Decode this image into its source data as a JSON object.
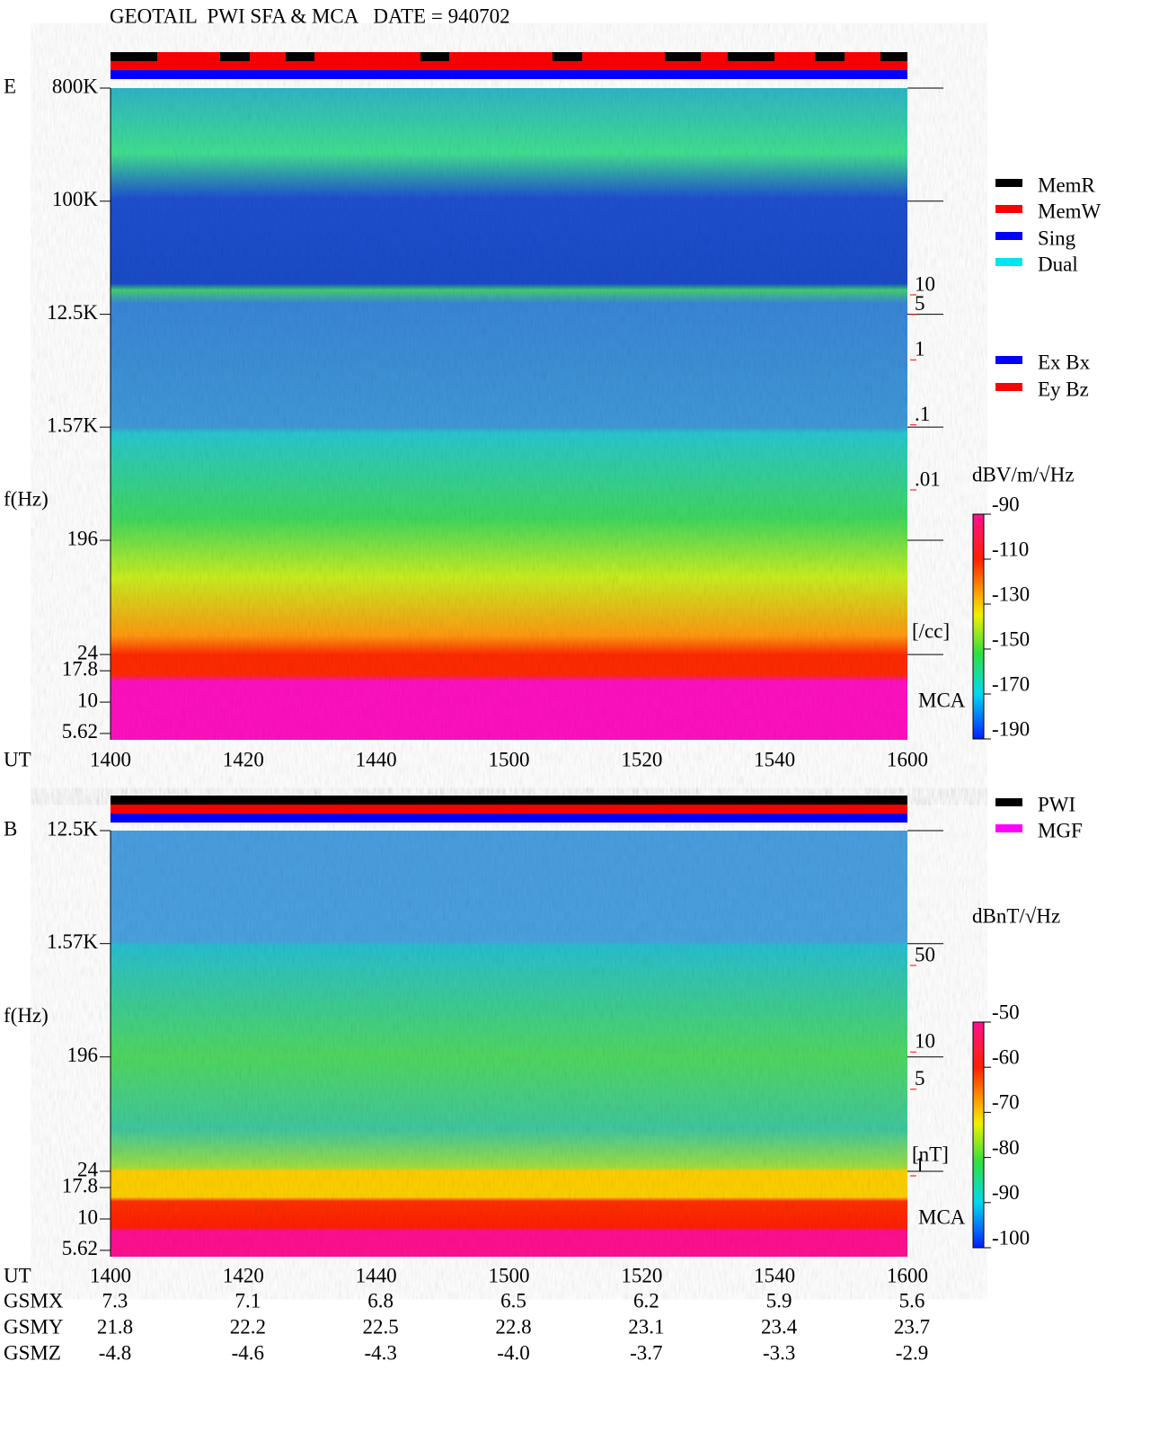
{
  "title": "GEOTAIL  PWI SFA & MCA   DATE = 940702",
  "chart_data": [
    {
      "type": "spectrogram",
      "panel_label": "E",
      "y_label": "f(Hz)",
      "x_label": "UT",
      "yscale": "log",
      "ylim": [
        5,
        800000
      ],
      "yticks": [
        {
          "value": 800000,
          "label": "800K"
        },
        {
          "value": 100000,
          "label": "100K"
        },
        {
          "value": 12500,
          "label": "12.5K"
        },
        {
          "value": 1570,
          "label": "1.57K"
        },
        196,
        24,
        17.8,
        10,
        5.62
      ],
      "categories": [
        "1400",
        "1420",
        "1440",
        "1500",
        "1520",
        "1540",
        "1600"
      ],
      "mca_label": "MCA",
      "legend": [
        {
          "name": "MemR",
          "color": "#000000"
        },
        {
          "name": "MemW",
          "color": "#ff0000"
        },
        {
          "name": "Sing",
          "color": "#0000ff"
        },
        {
          "name": "Dual",
          "color": "#00e5ee"
        }
      ],
      "legend2": [
        {
          "name": "Ex Bx",
          "color": "#0000ff"
        },
        {
          "name": "Ey Bz",
          "color": "#ff0000"
        }
      ],
      "colorbar": {
        "label": "dBV/m/√Hz",
        "lim": [
          -190,
          -90
        ],
        "ticks": [
          -90,
          -110,
          -130,
          -150,
          -170,
          -190
        ]
      },
      "secondary_axis": {
        "label": "[/cc]",
        "scale": "log",
        "lim": [
          0.01,
          10
        ],
        "color": "#ff0000",
        "ticks": [
          10,
          5,
          1,
          {
            "value": 0.1,
            "label": ".1"
          },
          {
            "value": 0.01,
            "label": ".01"
          }
        ]
      }
    },
    {
      "type": "spectrogram",
      "panel_label": "B",
      "y_label": "f(Hz)",
      "x_label": "UT",
      "yscale": "log",
      "ylim": [
        5,
        12500
      ],
      "yticks": [
        {
          "value": 12500,
          "label": "12.5K"
        },
        {
          "value": 1570,
          "label": "1.57K"
        },
        196,
        24,
        17.8,
        10,
        5.62
      ],
      "categories": [
        "1400",
        "1420",
        "1440",
        "1500",
        "1520",
        "1540",
        "1600"
      ],
      "mca_label": "MCA",
      "legend": [
        {
          "name": "PWI",
          "color": "#000000"
        },
        {
          "name": "MGF",
          "color": "#ff00ff"
        }
      ],
      "colorbar": {
        "label": "dBnT/√Hz",
        "lim": [
          -100,
          -50
        ],
        "ticks": [
          -50,
          -60,
          -70,
          -80,
          -90,
          -100
        ]
      },
      "secondary_axis": {
        "label": "[nT]",
        "scale": "log",
        "lim": [
          1,
          50
        ],
        "color": "#ff0000",
        "ticks": [
          50,
          10,
          5,
          1
        ]
      }
    }
  ],
  "orbit_table": {
    "rows": [
      {
        "name": "GSMX",
        "values": [
          "7.3",
          "7.1",
          "6.8",
          "6.5",
          "6.2",
          "5.9",
          "5.6"
        ]
      },
      {
        "name": "GSMY",
        "values": [
          "21.8",
          "22.2",
          "22.5",
          "22.8",
          "23.1",
          "23.4",
          "23.7"
        ]
      },
      {
        "name": "GSMZ",
        "values": [
          "-4.8",
          "-4.6",
          "-4.3",
          "-4.0",
          "-3.7",
          "-3.3",
          "-2.9"
        ]
      }
    ]
  }
}
